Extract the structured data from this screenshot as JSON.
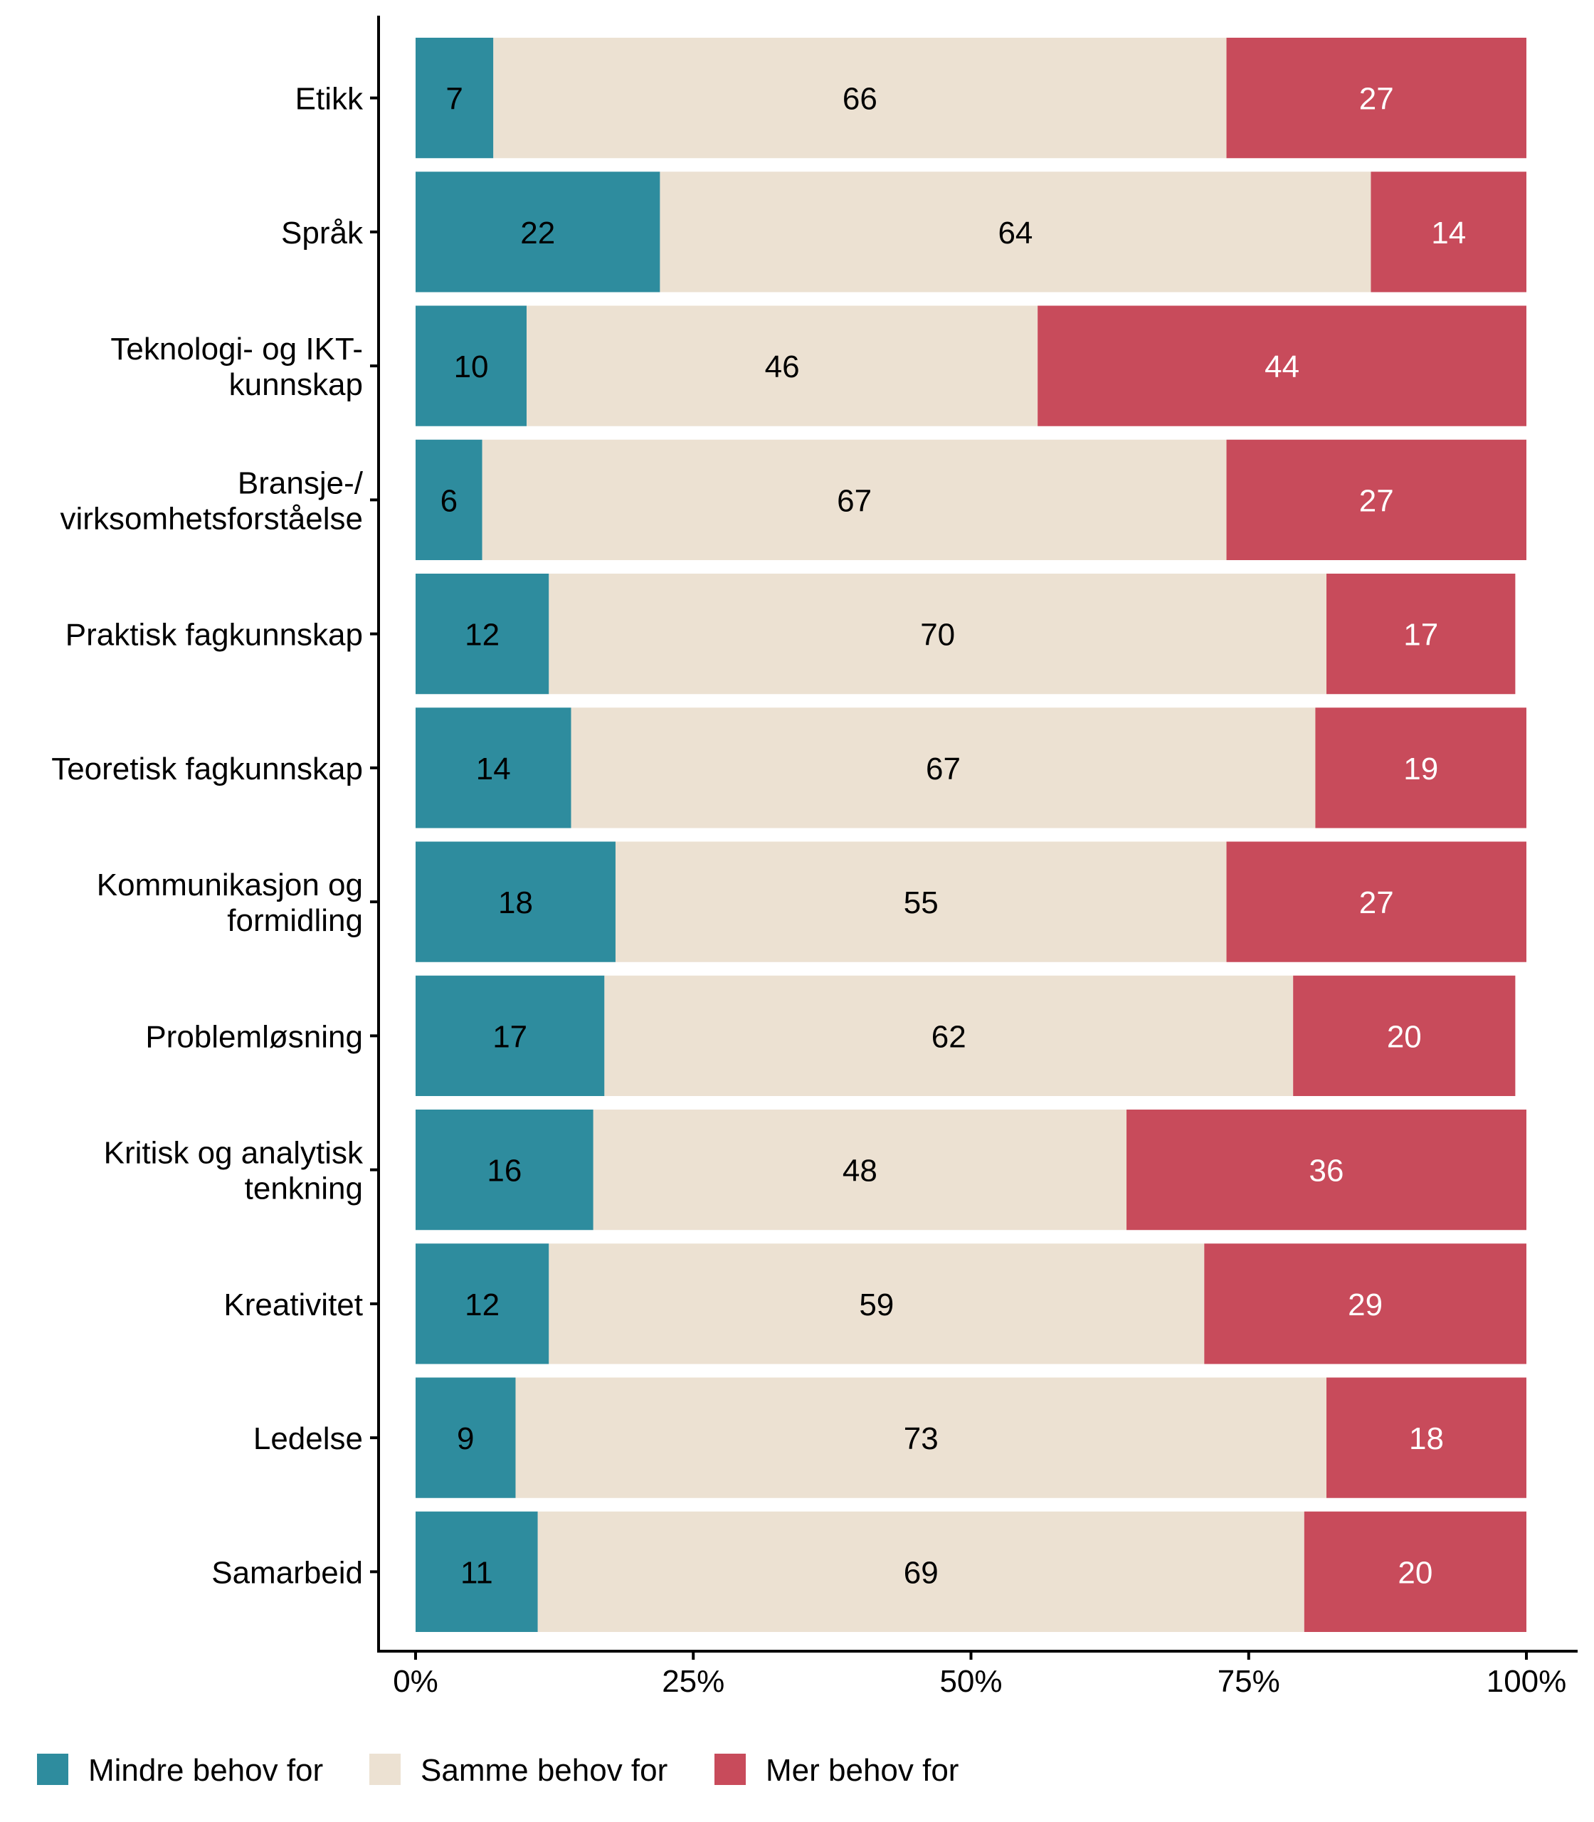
{
  "chart_data": {
    "type": "bar",
    "orientation": "horizontal",
    "stacked": true,
    "title": "",
    "xlabel": "",
    "ylabel": "",
    "xlim": [
      0,
      100
    ],
    "x_ticks": [
      "0%",
      "25%",
      "50%",
      "75%",
      "100%"
    ],
    "x_tick_values": [
      0,
      25,
      50,
      75,
      100
    ],
    "grid": false,
    "legend_position": "bottom",
    "categories": [
      [
        "Etikk"
      ],
      [
        "Språk"
      ],
      [
        "Teknologi- og IKT-",
        "kunnskap"
      ],
      [
        "Bransje-/",
        "virksomhetsforståelse"
      ],
      [
        "Praktisk fagkunnskap"
      ],
      [
        "Teoretisk fagkunnskap"
      ],
      [
        "Kommunikasjon og",
        "formidling"
      ],
      [
        "Problemløsning"
      ],
      [
        "Kritisk og analytisk",
        "tenkning"
      ],
      [
        "Kreativitet"
      ],
      [
        "Ledelse"
      ],
      [
        "Samarbeid"
      ]
    ],
    "series": [
      {
        "name": "Mindre behov for",
        "color": "#2E8C9E",
        "label_color": "#000000",
        "values": [
          7,
          22,
          10,
          6,
          12,
          14,
          18,
          17,
          16,
          12,
          9,
          11
        ]
      },
      {
        "name": "Samme behov for",
        "color": "#ECE1D2",
        "label_color": "#000000",
        "values": [
          66,
          64,
          46,
          67,
          70,
          67,
          55,
          62,
          48,
          59,
          73,
          69
        ]
      },
      {
        "name": "Mer behov for",
        "color": "#C84B5B",
        "label_color": "#FFFFFF",
        "values": [
          27,
          14,
          44,
          27,
          17,
          19,
          27,
          20,
          36,
          29,
          18,
          20
        ]
      }
    ]
  }
}
